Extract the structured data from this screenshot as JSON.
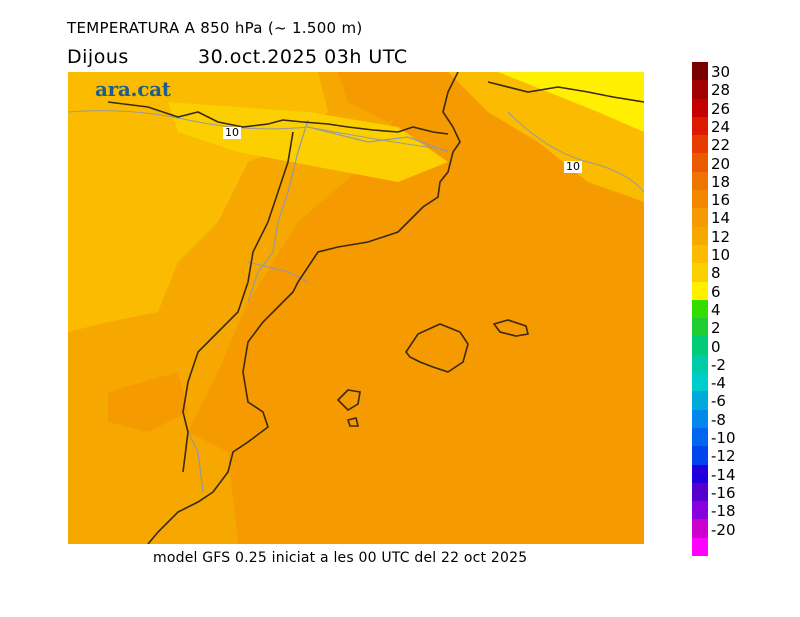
{
  "header": {
    "title": "TEMPERATURA A 850 hPa (~ 1.500 m)",
    "day": "Dijous",
    "datetime": "30.oct.2025 03h UTC"
  },
  "logo": {
    "text": "ara.cat",
    "color": "#1f5e8c"
  },
  "map": {
    "contour_labels": [
      "10",
      "10"
    ],
    "colors": {
      "sea": "#f59a00",
      "land_warm": "#f7a800",
      "land_cool": "#fabb00",
      "cold_10": "#fcd000",
      "cold_8": "#ffef00",
      "coast": "#3a2a10",
      "border": "#9a9a9a"
    }
  },
  "footer": {
    "text": "model GFS 0.25 iniciat a les 00 UTC del 22 oct 2025"
  },
  "colorbar": {
    "labels": [
      "30",
      "28",
      "26",
      "24",
      "22",
      "20",
      "18",
      "16",
      "14",
      "12",
      "10",
      "8",
      "6",
      "4",
      "2",
      "0",
      "-2",
      "-4",
      "-6",
      "-8",
      "-10",
      "-12",
      "-14",
      "-16",
      "-18",
      "-20"
    ],
    "colors": [
      "#7a0000",
      "#a00000",
      "#c40000",
      "#dc1a00",
      "#e63c00",
      "#ec5a00",
      "#f07400",
      "#f28800",
      "#f59a00",
      "#f7a800",
      "#fabb00",
      "#fcd000",
      "#ffef00",
      "#33dd00",
      "#1fcc33",
      "#00cc77",
      "#00ccaa",
      "#00cccc",
      "#00aadd",
      "#0088ee",
      "#0066ee",
      "#0044ee",
      "#2200dd",
      "#5500cc",
      "#8800dd",
      "#cc00cc",
      "#ff00ff"
    ]
  }
}
